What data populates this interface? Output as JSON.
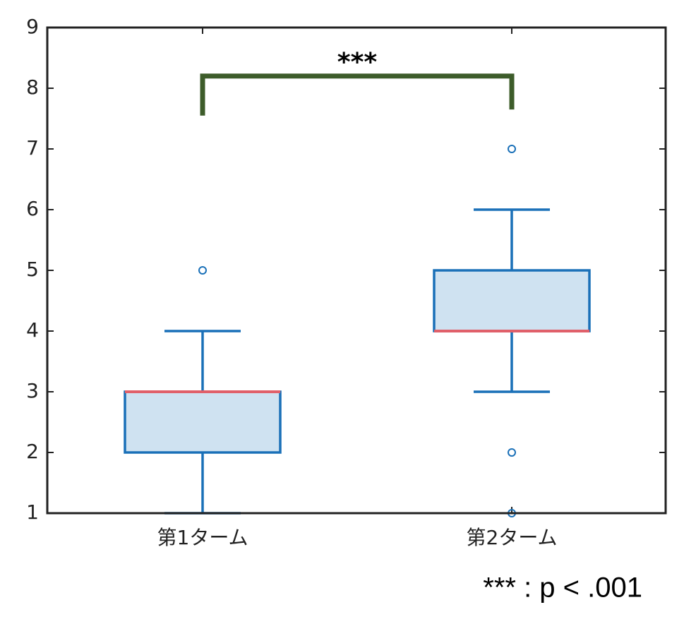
{
  "chart_data": {
    "type": "box",
    "categories": [
      "第1ターム",
      "第2ターム"
    ],
    "boxes": [
      {
        "min": 1,
        "q1": 2,
        "median": 3,
        "q3": 3,
        "max": 4,
        "outliers": [
          5
        ]
      },
      {
        "min": 3,
        "q1": 4,
        "median": 4,
        "q3": 5,
        "max": 6,
        "outliers": [
          7,
          2,
          1
        ]
      }
    ],
    "box_color": "#1a70b8",
    "box_fill": "#cfe2f1",
    "median_color": "#e0606a",
    "ylim": [
      1,
      9
    ],
    "yticks": [
      1,
      2,
      3,
      4,
      5,
      6,
      7,
      8,
      9
    ],
    "bracket": {
      "y": 8.2,
      "left_end": 7.55,
      "right_end": 7.65,
      "label": "***",
      "color": "#3d5c2a"
    },
    "footnote": "*** : p < .001"
  }
}
